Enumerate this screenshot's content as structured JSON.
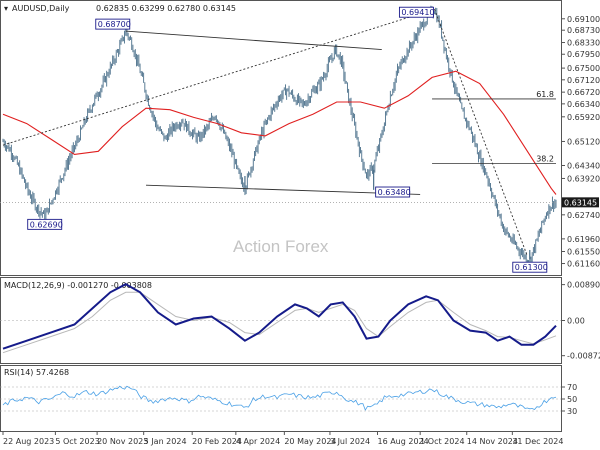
{
  "chart_data": {
    "type": "candlestick",
    "symbol": "AUDUSD,Daily",
    "ohlc_header": "0.62835 0.63299 0.62780 0.63145",
    "watermark": "Action Forex",
    "colors": {
      "candle": "#4a6f8a",
      "ma": "#e02020",
      "macd": "#151b8a",
      "signal": "#b8b8b8",
      "rsi": "#4aa0e6",
      "label_border": "#1a1a8a",
      "current_bg": "#1a1a1a"
    },
    "price_axis": {
      "ylim": [
        0.6095,
        0.6945
      ],
      "ticks": [
        "0.69100",
        "0.68730",
        "0.68330",
        "0.67950",
        "0.67500",
        "0.67120",
        "0.66720",
        "0.66340",
        "0.65920",
        "0.65120",
        "0.64340",
        "0.63920",
        "0.62740",
        "0.61960",
        "0.61550",
        "0.61160"
      ]
    },
    "price_path": [
      [
        0,
        0.6512
      ],
      [
        7,
        0.648
      ],
      [
        14,
        0.642
      ],
      [
        21,
        0.635
      ],
      [
        28,
        0.63
      ],
      [
        35,
        0.6269
      ],
      [
        42,
        0.633
      ],
      [
        49,
        0.6395
      ],
      [
        56,
        0.646
      ],
      [
        63,
        0.652
      ],
      [
        70,
        0.659
      ],
      [
        77,
        0.665
      ],
      [
        84,
        0.67
      ],
      [
        91,
        0.676
      ],
      [
        98,
        0.682
      ],
      [
        103,
        0.687
      ],
      [
        108,
        0.683
      ],
      [
        115,
        0.674
      ],
      [
        122,
        0.664
      ],
      [
        129,
        0.656
      ],
      [
        136,
        0.652
      ],
      [
        143,
        0.656
      ],
      [
        150,
        0.658
      ],
      [
        157,
        0.6545
      ],
      [
        164,
        0.652
      ],
      [
        171,
        0.6555
      ],
      [
        178,
        0.66
      ],
      [
        185,
        0.654
      ],
      [
        192,
        0.6475
      ],
      [
        198,
        0.64
      ],
      [
        203,
        0.6362
      ],
      [
        210,
        0.6455
      ],
      [
        217,
        0.654
      ],
      [
        224,
        0.66
      ],
      [
        231,
        0.665
      ],
      [
        238,
        0.668
      ],
      [
        245,
        0.665
      ],
      [
        252,
        0.663
      ],
      [
        259,
        0.667
      ],
      [
        266,
        0.67
      ],
      [
        273,
        0.676
      ],
      [
        279,
        0.681
      ],
      [
        284,
        0.677
      ],
      [
        290,
        0.665
      ],
      [
        295,
        0.656
      ],
      [
        300,
        0.647
      ],
      [
        305,
        0.64
      ],
      [
        311,
        0.643
      ],
      [
        318,
        0.654
      ],
      [
        325,
        0.666
      ],
      [
        331,
        0.674
      ],
      [
        337,
        0.679
      ],
      [
        343,
        0.683
      ],
      [
        350,
        0.688
      ],
      [
        357,
        0.692
      ],
      [
        362,
        0.6941
      ],
      [
        367,
        0.688
      ],
      [
        372,
        0.679
      ],
      [
        378,
        0.67
      ],
      [
        385,
        0.661
      ],
      [
        392,
        0.655
      ],
      [
        399,
        0.647
      ],
      [
        406,
        0.64
      ],
      [
        413,
        0.631
      ],
      [
        420,
        0.623
      ],
      [
        427,
        0.619
      ],
      [
        433,
        0.616
      ],
      [
        438,
        0.614
      ],
      [
        442,
        0.613
      ],
      [
        447,
        0.618
      ],
      [
        452,
        0.624
      ],
      [
        457,
        0.629
      ],
      [
        461,
        0.631
      ],
      [
        464,
        0.6314
      ]
    ],
    "price_spikes": [
      [
        203,
        0.6362,
        0.64
      ],
      [
        311,
        0.6355,
        0.642
      ],
      [
        442,
        0.613,
        0.616
      ]
    ],
    "moving_average": [
      [
        0,
        0.66
      ],
      [
        20,
        0.657
      ],
      [
        40,
        0.652
      ],
      [
        60,
        0.647
      ],
      [
        80,
        0.648
      ],
      [
        100,
        0.656
      ],
      [
        120,
        0.662
      ],
      [
        140,
        0.6615
      ],
      [
        160,
        0.659
      ],
      [
        180,
        0.657
      ],
      [
        200,
        0.654
      ],
      [
        220,
        0.653
      ],
      [
        240,
        0.657
      ],
      [
        260,
        0.66
      ],
      [
        280,
        0.664
      ],
      [
        300,
        0.664
      ],
      [
        320,
        0.662
      ],
      [
        340,
        0.666
      ],
      [
        360,
        0.672
      ],
      [
        380,
        0.674
      ],
      [
        400,
        0.67
      ],
      [
        420,
        0.66
      ],
      [
        440,
        0.648
      ],
      [
        460,
        0.636
      ],
      [
        464,
        0.634
      ]
    ],
    "annotations": [
      {
        "label": "0.62690",
        "x": 35,
        "y": 0.6269,
        "side": "below"
      },
      {
        "label": "0.68700",
        "x": 103,
        "y": 0.687,
        "side": "above"
      },
      {
        "label": "0.69410",
        "x": 362,
        "y": 0.6941,
        "side": "left"
      },
      {
        "label": "0.63480",
        "x": 311,
        "y": 0.6348,
        "side": "right"
      },
      {
        "label": "0.61300",
        "x": 442,
        "y": 0.613,
        "side": "below"
      }
    ],
    "fib_levels": [
      {
        "label": "61.8",
        "y": 0.665,
        "x_start": 360
      },
      {
        "label": "38.2",
        "y": 0.644,
        "x_start": 360
      }
    ],
    "trendlines": [
      {
        "style": "solid",
        "points": [
          [
            103,
            0.687
          ],
          [
            318,
            0.681
          ]
        ]
      },
      {
        "style": "solid",
        "points": [
          [
            120,
            0.637
          ],
          [
            350,
            0.634
          ]
        ]
      },
      {
        "style": "dashed",
        "points": [
          [
            0,
            0.65
          ],
          [
            362,
            0.6941
          ]
        ]
      },
      {
        "style": "dashed",
        "points": [
          [
            362,
            0.6941
          ],
          [
            440,
            0.614
          ]
        ]
      }
    ],
    "current_price": {
      "label": "0.63145",
      "y": 0.63145
    },
    "macd": {
      "title": "MACD(12,26,9) -0.001270 -0.003808",
      "ylim": [
        -0.0098,
        0.0098
      ],
      "ticks": [
        "0.008901",
        "0.00",
        "-0.008729"
      ],
      "macd_line": [
        [
          0,
          -0.007
        ],
        [
          20,
          -0.005
        ],
        [
          40,
          -0.003
        ],
        [
          60,
          -0.001
        ],
        [
          75,
          0.003
        ],
        [
          90,
          0.007
        ],
        [
          103,
          0.009
        ],
        [
          115,
          0.007
        ],
        [
          130,
          0.002
        ],
        [
          145,
          -0.001
        ],
        [
          160,
          0.0005
        ],
        [
          175,
          0.001
        ],
        [
          190,
          -0.002
        ],
        [
          203,
          -0.005
        ],
        [
          215,
          -0.003
        ],
        [
          230,
          0.001
        ],
        [
          245,
          0.004
        ],
        [
          255,
          0.003
        ],
        [
          265,
          0.001
        ],
        [
          275,
          0.004
        ],
        [
          285,
          0.0045
        ],
        [
          295,
          0.001
        ],
        [
          305,
          -0.0045
        ],
        [
          315,
          -0.004
        ],
        [
          325,
          0.0
        ],
        [
          340,
          0.004
        ],
        [
          355,
          0.006
        ],
        [
          365,
          0.005
        ],
        [
          378,
          0.0
        ],
        [
          392,
          -0.0025
        ],
        [
          405,
          -0.003
        ],
        [
          415,
          -0.005
        ],
        [
          425,
          -0.004
        ],
        [
          435,
          -0.006
        ],
        [
          445,
          -0.006
        ],
        [
          455,
          -0.004
        ],
        [
          464,
          -0.0013
        ]
      ],
      "signal_line": [
        [
          0,
          -0.008
        ],
        [
          20,
          -0.006
        ],
        [
          40,
          -0.004
        ],
        [
          60,
          -0.002
        ],
        [
          75,
          0.001
        ],
        [
          90,
          0.005
        ],
        [
          103,
          0.007
        ],
        [
          115,
          0.007
        ],
        [
          130,
          0.004
        ],
        [
          145,
          0.001
        ],
        [
          160,
          0.0
        ],
        [
          175,
          0.0008
        ],
        [
          190,
          -0.0005
        ],
        [
          203,
          -0.003
        ],
        [
          215,
          -0.0035
        ],
        [
          230,
          -0.0005
        ],
        [
          245,
          0.0025
        ],
        [
          255,
          0.003
        ],
        [
          265,
          0.002
        ],
        [
          275,
          0.003
        ],
        [
          285,
          0.004
        ],
        [
          295,
          0.0025
        ],
        [
          305,
          -0.002
        ],
        [
          315,
          -0.004
        ],
        [
          325,
          -0.0015
        ],
        [
          340,
          0.002
        ],
        [
          355,
          0.0045
        ],
        [
          365,
          0.005
        ],
        [
          378,
          0.002
        ],
        [
          392,
          -0.001
        ],
        [
          405,
          -0.0025
        ],
        [
          415,
          -0.004
        ],
        [
          425,
          -0.0042
        ],
        [
          435,
          -0.005
        ],
        [
          445,
          -0.0058
        ],
        [
          455,
          -0.0048
        ],
        [
          464,
          -0.0038
        ]
      ]
    },
    "rsi": {
      "title": "RSI(14) 57.4268",
      "ylim": [
        0,
        100
      ],
      "ticks": [
        "70",
        "50",
        "30"
      ],
      "levels": [
        70,
        50,
        30
      ],
      "rsi_line": [
        [
          0,
          40
        ],
        [
          10,
          48
        ],
        [
          20,
          52
        ],
        [
          30,
          45
        ],
        [
          40,
          50
        ],
        [
          50,
          60
        ],
        [
          60,
          55
        ],
        [
          70,
          62
        ],
        [
          80,
          58
        ],
        [
          90,
          65
        ],
        [
          100,
          70
        ],
        [
          108,
          68
        ],
        [
          115,
          55
        ],
        [
          125,
          45
        ],
        [
          135,
          50
        ],
        [
          145,
          52
        ],
        [
          155,
          46
        ],
        [
          165,
          55
        ],
        [
          175,
          50
        ],
        [
          185,
          45
        ],
        [
          195,
          40
        ],
        [
          203,
          35
        ],
        [
          210,
          48
        ],
        [
          220,
          55
        ],
        [
          230,
          52
        ],
        [
          240,
          58
        ],
        [
          250,
          54
        ],
        [
          260,
          52
        ],
        [
          270,
          58
        ],
        [
          280,
          62
        ],
        [
          290,
          48
        ],
        [
          300,
          42
        ],
        [
          305,
          34
        ],
        [
          312,
          38
        ],
        [
          320,
          52
        ],
        [
          330,
          56
        ],
        [
          340,
          58
        ],
        [
          350,
          62
        ],
        [
          360,
          66
        ],
        [
          366,
          60
        ],
        [
          375,
          52
        ],
        [
          385,
          46
        ],
        [
          395,
          42
        ],
        [
          405,
          40
        ],
        [
          415,
          36
        ],
        [
          425,
          42
        ],
        [
          435,
          36
        ],
        [
          442,
          30
        ],
        [
          450,
          40
        ],
        [
          458,
          50
        ],
        [
          464,
          57
        ]
      ]
    },
    "x_axis": {
      "range": [
        0,
        464
      ],
      "ticks": [
        [
          0,
          "22 Aug 2023"
        ],
        [
          54,
          "5 Oct 2023"
        ],
        [
          97,
          "20 Nov 2023"
        ],
        [
          145,
          "5 Jan 2024"
        ],
        [
          195,
          "20 Feb 2024"
        ],
        [
          240,
          "4 Apr 2024"
        ],
        [
          290,
          "20 May 2024"
        ],
        [
          337,
          "3 Jul 2024"
        ],
        [
          386,
          "16 Aug 2024"
        ],
        [
          430,
          "1 Oct 2024"
        ],
        [
          478,
          "14 Nov 2024"
        ],
        [
          525,
          "31 Dec 2024"
        ]
      ]
    }
  }
}
